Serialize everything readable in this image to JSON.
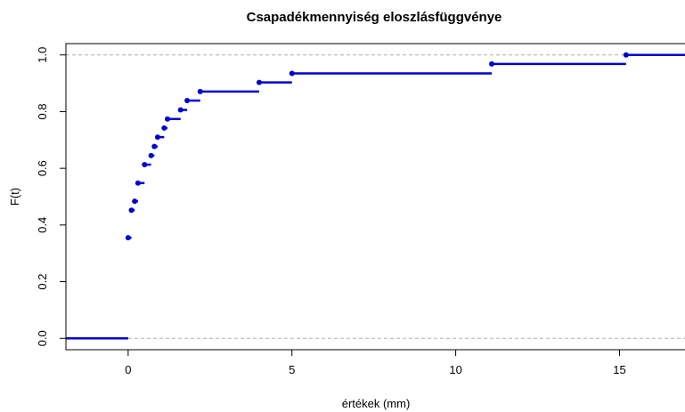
{
  "chart_data": {
    "type": "line",
    "subtype": "step-ecdf",
    "title": "Csapadékmennyiség eloszlásfüggvénye",
    "xlabel": "értékek (mm)",
    "ylabel": "F(t)",
    "xlim": [
      -1.9,
      17.0
    ],
    "ylim": [
      -0.04,
      1.04
    ],
    "xticks": [
      0,
      5,
      10,
      15
    ],
    "yticks": [
      0.0,
      0.2,
      0.4,
      0.6,
      0.8,
      1.0
    ],
    "ytick_labels": [
      "0.0",
      "0.2",
      "0.4",
      "0.6",
      "0.8",
      "1.0"
    ],
    "reference_lines": [
      0,
      1
    ],
    "grid": false,
    "color": "#0000cd",
    "series": [
      {
        "x": [
          0,
          0.1,
          0.2,
          0.3,
          0.5,
          0.7,
          0.8,
          0.9,
          1.1,
          1.2,
          1.6,
          1.8,
          2.2,
          4.0,
          5.0,
          11.1,
          15.2
        ],
        "y": [
          0.355,
          0.452,
          0.484,
          0.548,
          0.613,
          0.645,
          0.677,
          0.71,
          0.742,
          0.774,
          0.806,
          0.839,
          0.871,
          0.903,
          0.935,
          0.968,
          1.0
        ]
      }
    ]
  }
}
